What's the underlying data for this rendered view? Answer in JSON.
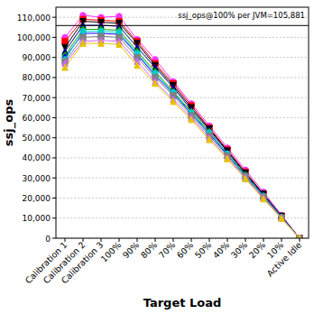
{
  "chart_data": {
    "type": "line",
    "x_label": "Target Load",
    "y_label": "ssj_ops",
    "categories": [
      "Calibration 1",
      "Calibration 2",
      "Calibration 3",
      "100%",
      "90%",
      "80%",
      "70%",
      "60%",
      "50%",
      "40%",
      "30%",
      "20%",
      "10%",
      "Active Idle"
    ],
    "series": [
      {
        "color": "#ff33ff",
        "marker": "circle",
        "values": [
          100000,
          111000,
          110000,
          110500,
          99000,
          89000,
          78000,
          67000,
          56000,
          45000,
          34000,
          23000,
          11500,
          0
        ]
      },
      {
        "color": "#ff0000",
        "marker": "square",
        "values": [
          98000,
          109000,
          108500,
          108000,
          98000,
          87000,
          77000,
          66000,
          55000,
          44000,
          33000,
          22000,
          11000,
          0
        ]
      },
      {
        "color": "#000000",
        "marker": "triangle-down",
        "values": [
          95000,
          108000,
          107500,
          107000,
          97000,
          86000,
          76000,
          65000,
          54500,
          43500,
          32500,
          22000,
          11000,
          0
        ]
      },
      {
        "color": "#000080",
        "marker": "triangle",
        "values": [
          93000,
          106000,
          106000,
          105500,
          95000,
          85000,
          75000,
          64000,
          54000,
          43000,
          32000,
          21500,
          10800,
          0
        ]
      },
      {
        "color": "#00aa00",
        "marker": "diamond",
        "values": [
          91000,
          104000,
          104000,
          103500,
          93000,
          83000,
          73000,
          63000,
          53000,
          42000,
          31500,
          21000,
          10500,
          0
        ]
      },
      {
        "color": "#0000ff",
        "marker": "diamond",
        "values": [
          90000,
          102000,
          102000,
          101500,
          91500,
          81000,
          72000,
          62000,
          52000,
          41500,
          31000,
          21000,
          10500,
          0
        ]
      },
      {
        "color": "#00cccc",
        "marker": "circle",
        "values": [
          89000,
          103000,
          103000,
          102500,
          92000,
          82000,
          72500,
          62500,
          52500,
          42000,
          31000,
          21000,
          10500,
          0
        ]
      },
      {
        "color": "#808080",
        "marker": "square",
        "values": [
          88000,
          100000,
          100500,
          100000,
          90000,
          80000,
          71000,
          61000,
          51000,
          41000,
          30500,
          20500,
          10200,
          0
        ]
      },
      {
        "color": "#cc66ff",
        "marker": "triangle",
        "values": [
          87000,
          98000,
          98500,
          98000,
          88000,
          78000,
          69000,
          60000,
          50000,
          40000,
          30000,
          20000,
          10000,
          0
        ]
      },
      {
        "color": "#e6c200",
        "marker": "triangle",
        "values": [
          85000,
          97000,
          97000,
          96500,
          86000,
          77000,
          68000,
          59000,
          49000,
          39500,
          29500,
          19500,
          9800,
          0
        ]
      }
    ],
    "ylim": [
      0,
      115000
    ],
    "yticks": [
      0,
      {
        "value": 10000,
        "label": "10,000"
      },
      {
        "value": 20000,
        "label": "20,000"
      },
      {
        "value": 30000,
        "label": "30,000"
      },
      {
        "value": 40000,
        "label": "40,000"
      },
      {
        "value": 50000,
        "label": "50,000"
      },
      {
        "value": 60000,
        "label": "60,000"
      },
      {
        "value": 70000,
        "label": "70,000"
      },
      {
        "value": 80000,
        "label": "80,000"
      },
      {
        "value": 90000,
        "label": "90,000"
      },
      {
        "value": 100000,
        "label": "100,000"
      },
      {
        "value": 110000,
        "label": "110,000"
      }
    ],
    "grid": true,
    "annotations": [
      {
        "text": "ssj_ops@100% per JVM=105,881",
        "value": 105881
      }
    ]
  }
}
